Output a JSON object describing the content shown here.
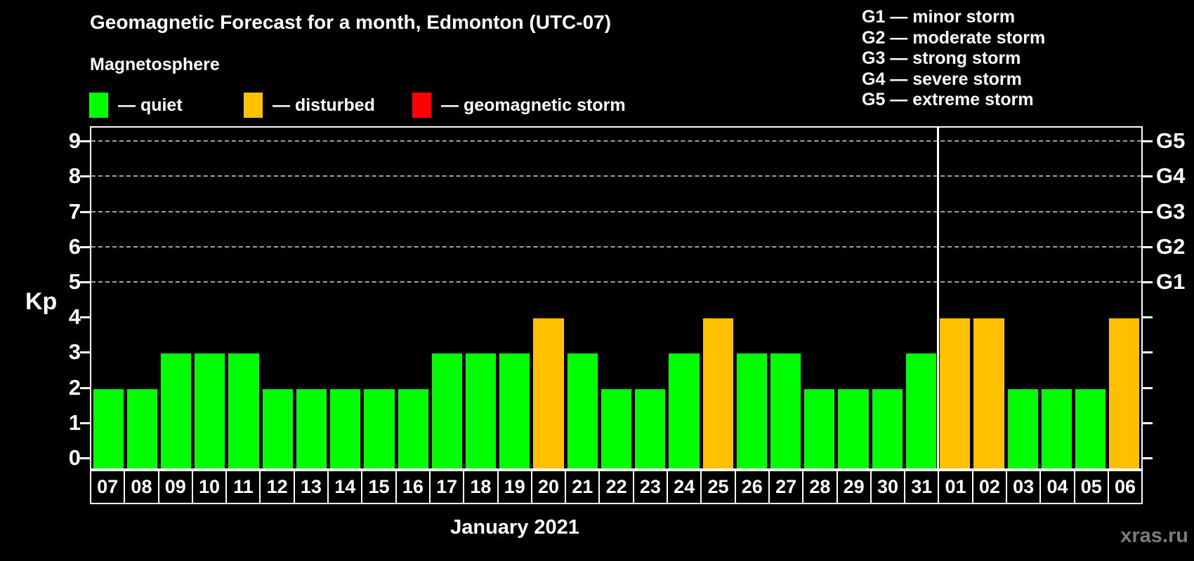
{
  "title": "Geomagnetic Forecast for a month, Edmonton (UTC-07)",
  "subtitle": "Magnetosphere",
  "legend": {
    "items": [
      {
        "state": "quiet",
        "label": "— quiet",
        "color": "#00ff00"
      },
      {
        "state": "disturbed",
        "label": "— disturbed",
        "color": "#ffc000"
      },
      {
        "state": "storm",
        "label": "— geomagnetic storm",
        "color": "#ff0000"
      }
    ]
  },
  "storm_scale_legend": {
    "items": [
      "G1 — minor storm",
      "G2 — moderate storm",
      "G3 — strong storm",
      "G4 — severe storm",
      "G5 — extreme storm"
    ]
  },
  "chart_data": {
    "type": "bar",
    "title": "Geomagnetic Forecast for a month, Edmonton (UTC-07)",
    "xlabel": "January 2021",
    "ylabel": "Kp",
    "ylim": [
      0,
      9
    ],
    "yticks": [
      0,
      1,
      2,
      3,
      4,
      5,
      6,
      7,
      8,
      9
    ],
    "gridline_levels": [
      5,
      6,
      7,
      8,
      9
    ],
    "grid": "dashed-horizontal-at-storm-levels",
    "legend_position": "top-left",
    "right_axis": [
      {
        "level": 5,
        "label": "G1"
      },
      {
        "level": 6,
        "label": "G2"
      },
      {
        "level": 7,
        "label": "G3"
      },
      {
        "level": 8,
        "label": "G4"
      },
      {
        "level": 9,
        "label": "G5"
      }
    ],
    "categories": [
      "07",
      "08",
      "09",
      "10",
      "11",
      "12",
      "13",
      "14",
      "15",
      "16",
      "17",
      "18",
      "19",
      "20",
      "21",
      "22",
      "23",
      "24",
      "25",
      "26",
      "27",
      "28",
      "29",
      "30",
      "31",
      "01",
      "02",
      "03",
      "04",
      "05",
      "06"
    ],
    "values": [
      2,
      2,
      3,
      3,
      3,
      2,
      2,
      2,
      2,
      2,
      3,
      3,
      3,
      4,
      3,
      2,
      2,
      3,
      4,
      3,
      3,
      2,
      2,
      2,
      3,
      4,
      4,
      2,
      2,
      2,
      4
    ],
    "states": [
      "quiet",
      "quiet",
      "quiet",
      "quiet",
      "quiet",
      "quiet",
      "quiet",
      "quiet",
      "quiet",
      "quiet",
      "quiet",
      "quiet",
      "quiet",
      "disturbed",
      "quiet",
      "quiet",
      "quiet",
      "quiet",
      "disturbed",
      "quiet",
      "quiet",
      "quiet",
      "quiet",
      "quiet",
      "quiet",
      "disturbed",
      "disturbed",
      "quiet",
      "quiet",
      "quiet",
      "disturbed"
    ],
    "month_separator_after_index": 24,
    "colors": {
      "quiet": "#00ff00",
      "disturbed": "#ffc000",
      "storm": "#ff0000"
    }
  },
  "watermark": "xras.ru"
}
